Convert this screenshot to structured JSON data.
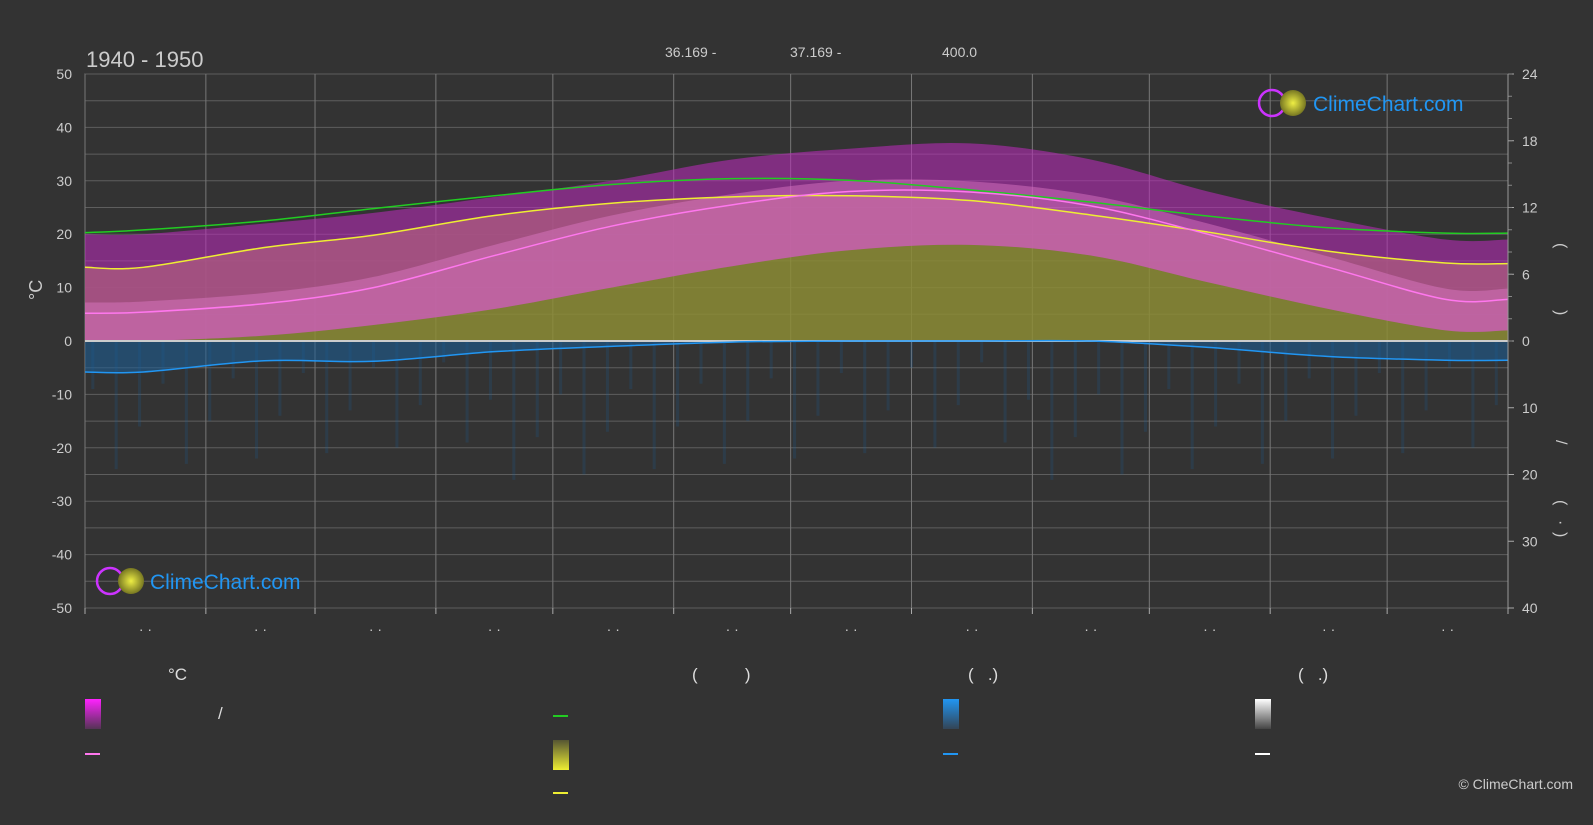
{
  "title": "1940 - 1950",
  "header_values": [
    "36.169 -",
    "37.169 -",
    "400.0"
  ],
  "left_axis_label": "°C",
  "right_axis_fragments": [
    "(",
    ")",
    "/",
    "(",
    "·",
    ")"
  ],
  "month_tick_labels": [
    "· ·",
    "· ·",
    "· ·",
    "· ·",
    "· ·",
    "· ·",
    "· ·",
    "· ·",
    "· ·",
    "· ·",
    "· ·",
    "· ·"
  ],
  "logo_text": "ClimeChart.com",
  "copyright": "© ClimeChart.com",
  "legend": {
    "col1_header": "°C",
    "col1_slash": "/",
    "col2_header": "(          )",
    "col3_header": "(   .)",
    "col4_header": "(   .)"
  },
  "colors": {
    "background": "#333333",
    "daylight_line": "#22cc22",
    "sunshine_line": "#eeee33",
    "temp_mean_line": "#ff77ee",
    "precip_line": "#2196f3",
    "temp_range": "#cc22cc",
    "sunshine_fill": "#999933",
    "precip_fill": "#1a5f99",
    "grid": "#6a6a6a",
    "logo_blue": "#2196f3"
  },
  "chart_data": {
    "type": "area",
    "title": "1940 - 1950",
    "x_unit": "day of year",
    "ylabel": "°C",
    "left_ylim": [
      -50,
      50
    ],
    "left_yticks": [
      50,
      40,
      30,
      20,
      10,
      0,
      -10,
      -20,
      -30,
      -40,
      -50
    ],
    "right_top_ylim": [
      0,
      24
    ],
    "right_top_yticks": [
      24,
      18,
      12,
      6,
      0
    ],
    "right_bottom_ylim": [
      0,
      40
    ],
    "right_bottom_yticks": [
      0,
      10,
      20,
      30,
      40
    ],
    "grid": true,
    "x": [
      0,
      15,
      46,
      74,
      105,
      135,
      166,
      196,
      227,
      258,
      288,
      319,
      349,
      365
    ],
    "series": [
      {
        "key": "daylight",
        "axis": "hours",
        "values": [
          20.3,
          20.8,
          22.5,
          24.8,
          27.2,
          29.3,
          30.4,
          30.1,
          28.3,
          26.0,
          23.4,
          21.2,
          20.2,
          20.2
        ]
      },
      {
        "key": "sunshine",
        "axis": "hours",
        "values": [
          13.8,
          13.8,
          17.5,
          19.8,
          23.5,
          25.8,
          27.0,
          27.2,
          26.3,
          23.6,
          20.4,
          16.8,
          14.6,
          14.5
        ]
      },
      {
        "key": "temp_mean",
        "axis": "°C",
        "values": [
          5.2,
          5.4,
          7.0,
          10.0,
          16.0,
          21.5,
          25.5,
          28.0,
          27.9,
          25.3,
          20.0,
          13.8,
          7.8,
          7.8
        ]
      },
      {
        "key": "precip",
        "axis": "mm",
        "values": [
          -5.8,
          -5.8,
          -3.7,
          -3.8,
          -2.0,
          -1.0,
          -0.2,
          0.0,
          0.0,
          0.0,
          -1.2,
          -2.9,
          -3.6,
          -3.6
        ]
      }
    ],
    "temp_max_band": [
      20,
      20,
      22,
      24,
      27,
      30,
      34,
      36,
      37,
      34,
      28,
      23,
      19,
      19
    ],
    "temp_min_band": [
      0,
      0,
      1,
      3,
      6,
      10,
      14,
      17,
      18,
      16,
      11,
      6,
      2,
      2
    ]
  }
}
